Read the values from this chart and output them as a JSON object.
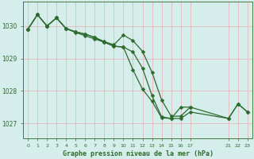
{
  "title": "Graphe pression niveau de la mer (hPa)",
  "bg_color": "#d6eeeb",
  "grid_color": "#e8b8b8",
  "line_color": "#2d6a2d",
  "marker_color": "#2d6a2d",
  "xlim": [
    -0.5,
    23.5
  ],
  "ylim": [
    1026.55,
    1030.75
  ],
  "yticks": [
    1027,
    1028,
    1029,
    1030
  ],
  "ytick_fontsize": 5.5,
  "xtick_fontsize": 4.5,
  "xlabel_fontsize": 6.0,
  "xtick_positions": [
    0,
    1,
    2,
    3,
    4,
    5,
    6,
    7,
    8,
    9,
    10,
    11,
    12,
    13,
    14,
    15,
    16,
    17,
    21,
    22,
    23
  ],
  "xtick_labels": [
    "0",
    "1",
    "2",
    "3",
    "4",
    "5",
    "6",
    "7",
    "8",
    "9",
    "10",
    "11",
    "12",
    "13",
    "14",
    "15",
    "16",
    "17",
    "21",
    "22",
    "23"
  ],
  "line1_x": [
    0,
    1,
    2,
    3,
    4,
    5,
    6,
    7,
    8,
    9,
    10,
    11,
    12,
    13,
    14,
    15,
    16,
    17,
    21,
    22,
    23
  ],
  "line1_y": [
    1029.9,
    1030.35,
    1030.0,
    1030.25,
    1029.92,
    1029.8,
    1029.7,
    1029.6,
    1029.5,
    1029.38,
    1029.35,
    1029.2,
    1028.7,
    1027.85,
    1027.2,
    1027.15,
    1027.15,
    1027.35,
    1027.15,
    1027.6,
    1027.35
  ],
  "line2_x": [
    0,
    1,
    2,
    3,
    4,
    5,
    6,
    7,
    8,
    9,
    10,
    11,
    12,
    13,
    14,
    15,
    16,
    17
  ],
  "line2_y": [
    1029.9,
    1030.35,
    1030.0,
    1030.25,
    1029.92,
    1029.82,
    1029.75,
    1029.65,
    1029.52,
    1029.42,
    1029.72,
    1029.55,
    1029.22,
    1028.57,
    1027.72,
    1027.22,
    1027.22,
    1027.5
  ],
  "line3_x": [
    0,
    1,
    2,
    3,
    4,
    5,
    6,
    7,
    8,
    9,
    10,
    11,
    12,
    13,
    14,
    15,
    16,
    17,
    21,
    22,
    23
  ],
  "line3_y": [
    1029.9,
    1030.35,
    1030.0,
    1030.25,
    1029.92,
    1029.82,
    1029.75,
    1029.65,
    1029.5,
    1029.38,
    1029.35,
    1028.65,
    1028.05,
    1027.68,
    1027.17,
    1027.15,
    1027.5,
    1027.5,
    1027.15,
    1027.6,
    1027.35
  ],
  "marker_size": 2.5,
  "line_width": 0.9
}
